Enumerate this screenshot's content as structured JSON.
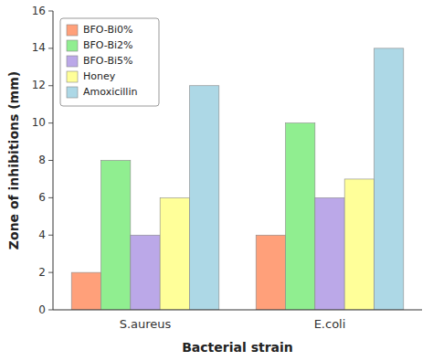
{
  "chart_data": {
    "type": "bar",
    "categories": [
      "S.aureus",
      "E.coli"
    ],
    "series": [
      {
        "name": "BFO-Bi0%",
        "values": [
          2,
          4
        ],
        "color": "#FFA07A"
      },
      {
        "name": "BFO-Bi2%",
        "values": [
          8,
          10
        ],
        "color": "#90EE90"
      },
      {
        "name": "BFO-Bi5%",
        "values": [
          4,
          6
        ],
        "color": "#BBA8E8"
      },
      {
        "name": "Honey",
        "values": [
          6,
          7
        ],
        "color": "#FFFF99"
      },
      {
        "name": "Amoxicillin",
        "values": [
          12,
          14
        ],
        "color": "#ADD8E6"
      }
    ],
    "ylabel": "Zone of inhibitions (mm)",
    "xlabel": "Bacterial strain",
    "ylim": [
      0,
      16
    ],
    "yticks": [
      0,
      2,
      4,
      6,
      8,
      10,
      12,
      14,
      16
    ],
    "grid": false,
    "legend": "upper left"
  }
}
